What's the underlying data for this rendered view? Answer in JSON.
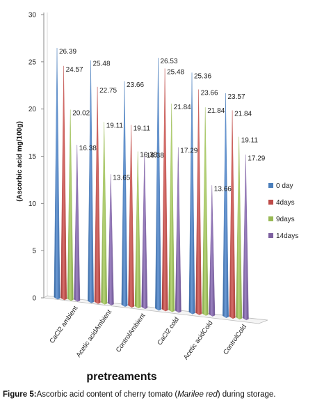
{
  "chart_data": {
    "type": "bar",
    "title": "",
    "xlabel": "pretreaments",
    "ylabel": "(Ascorbic acid mg/100g)",
    "ylim": [
      0,
      30
    ],
    "yticks": [
      0,
      5,
      10,
      15,
      20,
      25,
      30
    ],
    "categories": [
      "CaCl2 ambient",
      "Acetic acidAmbient",
      "ControlAmbient",
      "CaCl2 cold",
      "Acetic acidCold",
      "ControlCold"
    ],
    "series": [
      {
        "name": "0 day",
        "color": "#4a7ebb",
        "values": [
          26.39,
          25.48,
          23.66,
          26.53,
          25.36,
          23.57
        ]
      },
      {
        "name": "4days",
        "color": "#be4b48",
        "values": [
          24.57,
          22.75,
          19.11,
          25.48,
          23.66,
          21.84
        ]
      },
      {
        "name": "9days",
        "color": "#98b954",
        "values": [
          20.02,
          19.11,
          16.38,
          21.84,
          21.84,
          19.11
        ]
      },
      {
        "name": "14days",
        "color": "#7d60a0",
        "values": [
          16.38,
          13.65,
          16.38,
          17.29,
          13.66,
          17.29
        ]
      }
    ],
    "data_labels": [
      [
        "26.39",
        "24.57",
        "20.02",
        "16.38"
      ],
      [
        "25.48",
        "22.75",
        "19.11",
        "13.65"
      ],
      [
        "23.66",
        "19.11",
        "16.38",
        "16.38"
      ],
      [
        "26.53",
        "25.48",
        "21.84",
        "17.29"
      ],
      [
        "25.36",
        "23.66",
        "21.84",
        "13.66"
      ],
      [
        "23.57",
        "21.84",
        "19.11",
        "17.29"
      ]
    ],
    "style": "3d-cone",
    "grid": false,
    "legend_position": "right"
  },
  "caption": {
    "label": "Figure 5:",
    "text_before": "Ascorbic acid content of cherry tomato (",
    "italic": "Marilee red",
    "text_after": ") during storage."
  }
}
